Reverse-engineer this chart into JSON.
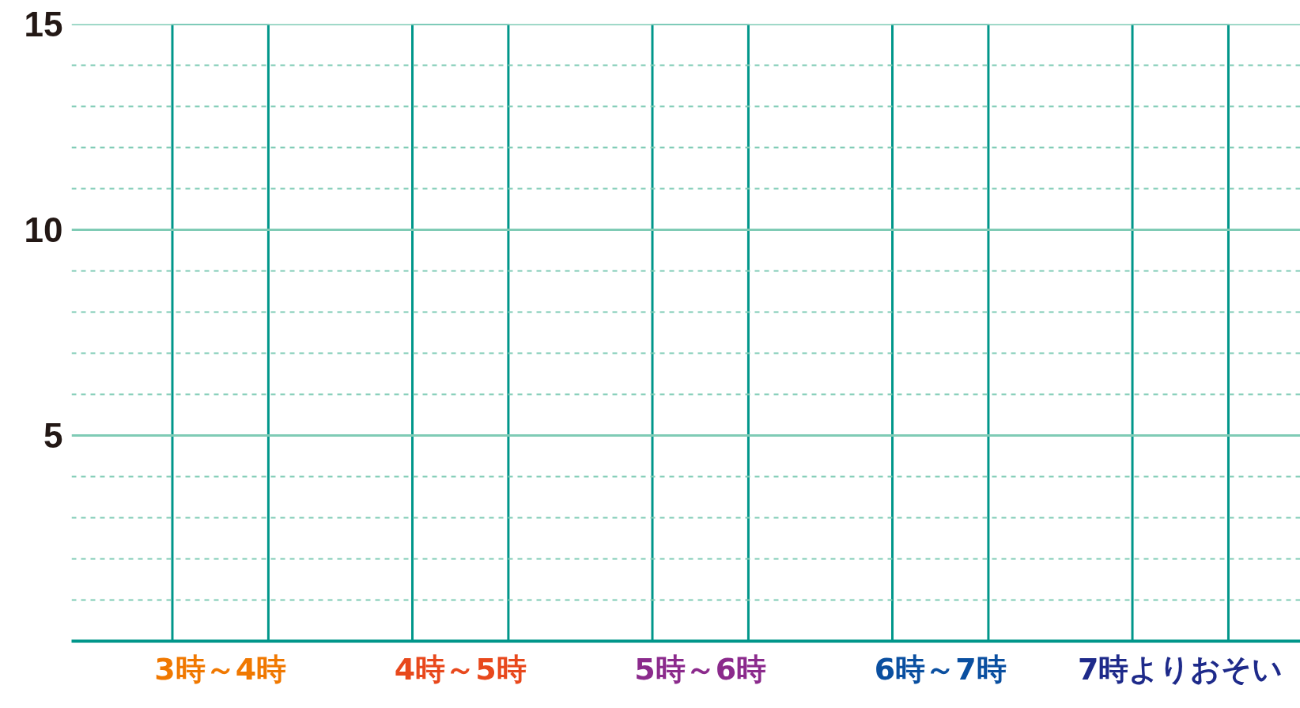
{
  "chart_data": {
    "type": "bar",
    "categories": [
      "3時～4時",
      "4時～5時",
      "5時～6時",
      "6時～7時",
      "7時よりおそい"
    ],
    "values": [
      15,
      15,
      15,
      15,
      15
    ],
    "color": "#00968a",
    "ylim": [
      0,
      15
    ],
    "yticks": [
      {
        "value": 1,
        "label": null
      },
      {
        "value": 2,
        "label": null
      },
      {
        "value": 3,
        "label": null
      },
      {
        "value": 4,
        "label": null
      },
      5,
      {
        "value": 6,
        "label": null
      },
      {
        "value": 7,
        "label": null
      },
      {
        "value": 8,
        "label": null
      },
      {
        "value": 9,
        "label": null
      },
      10,
      {
        "value": 11,
        "label": null
      },
      {
        "value": 12,
        "label": null
      },
      {
        "value": 13,
        "label": null
      },
      {
        "value": 14,
        "label": null
      },
      15
    ],
    "grid": "y"
  }
}
